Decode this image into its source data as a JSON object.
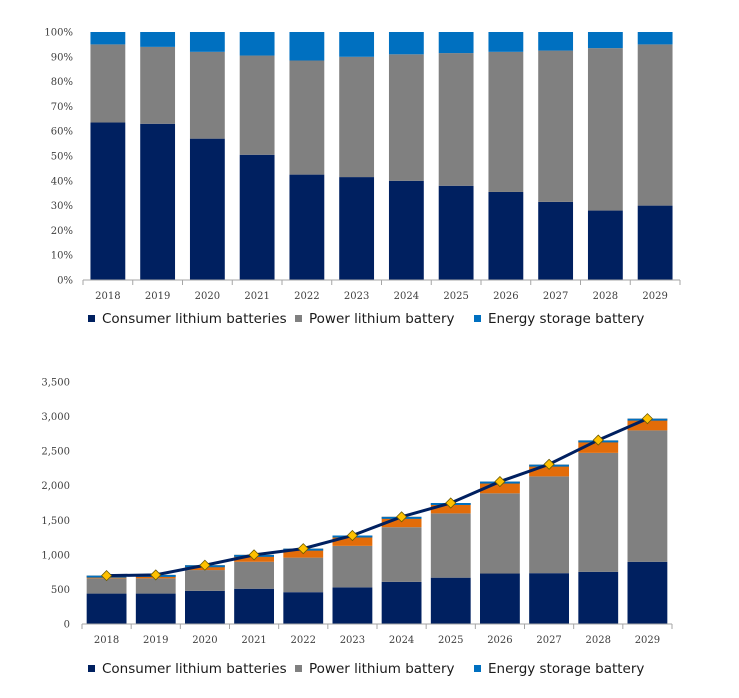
{
  "colors": {
    "consumer": "#002060",
    "power": "#808080",
    "energy": "#0070C0",
    "energy_bottom": "#E36C09",
    "total_line": "#002060",
    "marker": "#FFC000",
    "axis": "#A6A6A6"
  },
  "chart_data": [
    {
      "type": "bar",
      "stacked": "percent",
      "categories": [
        "2018",
        "2019",
        "2020",
        "2021",
        "2022",
        "2023",
        "2024",
        "2025",
        "2026",
        "2027",
        "2028",
        "2029"
      ],
      "series": [
        {
          "name": "Consumer lithium batteries",
          "values": [
            63.5,
            63,
            57,
            50.5,
            42.5,
            41.5,
            40,
            38,
            35.5,
            31.5,
            28,
            30
          ]
        },
        {
          "name": "Power lithium battery",
          "values": [
            31.5,
            31,
            35,
            40,
            46,
            48.5,
            51,
            53.5,
            56.5,
            61,
            65.5,
            65
          ]
        },
        {
          "name": "Energy storage battery",
          "values": [
            5,
            6,
            8,
            9.5,
            11.5,
            10,
            9,
            8.5,
            8,
            7.5,
            6.5,
            5
          ]
        }
      ],
      "ylim": [
        0,
        100
      ],
      "ytick_labels": [
        "0%",
        "10%",
        "20%",
        "30%",
        "40%",
        "50%",
        "60%",
        "70%",
        "80%",
        "90%",
        "100%"
      ],
      "legend": [
        "Consumer lithium batteries",
        "Power lithium battery",
        "Energy storage battery"
      ],
      "legend_position": "bottom"
    },
    {
      "type": "bar",
      "stacked": "absolute",
      "categories": [
        "2018",
        "2019",
        "2020",
        "2021",
        "2022",
        "2023",
        "2024",
        "2025",
        "2026",
        "2027",
        "2028",
        "2029"
      ],
      "series": [
        {
          "name": "Consumer lithium batteries",
          "values": [
            440,
            440,
            480,
            510,
            460,
            530,
            610,
            670,
            730,
            735,
            755,
            900
          ]
        },
        {
          "name": "Power lithium battery",
          "values": [
            220,
            220,
            300,
            390,
            500,
            600,
            790,
            930,
            1160,
            1400,
            1720,
            1900
          ]
        },
        {
          "name": "Energy storage battery",
          "values": [
            40,
            50,
            70,
            100,
            130,
            150,
            150,
            150,
            170,
            170,
            180,
            170
          ]
        }
      ],
      "total_line": [
        700,
        710,
        850,
        1000,
        1090,
        1280,
        1550,
        1750,
        2060,
        2310,
        2660,
        2970
      ],
      "ylim": [
        0,
        3500
      ],
      "ytick_labels": [
        "0",
        "500",
        "1,000",
        "1,500",
        "2,000",
        "2,500",
        "3,000",
        "3,500"
      ],
      "legend": [
        "Consumer lithium batteries",
        "Power lithium battery",
        "Energy storage battery"
      ],
      "legend_position": "bottom"
    }
  ]
}
